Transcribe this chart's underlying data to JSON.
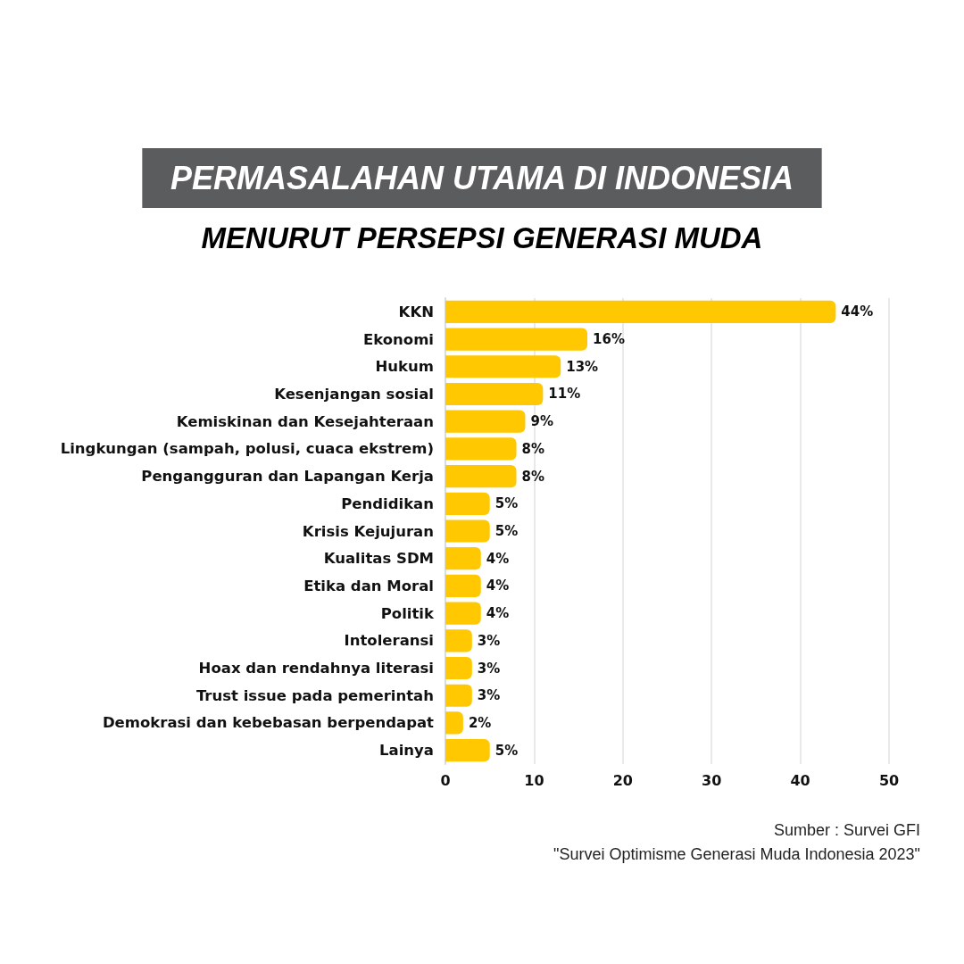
{
  "chart_data": {
    "type": "bar",
    "orientation": "horizontal",
    "title": "PERMASALAHAN UTAMA DI INDONESIA",
    "subtitle": "MENURUT PERSEPSI GENERASI MUDA",
    "categories": [
      "KKN",
      "Ekonomi",
      "Hukum",
      "Kesenjangan sosial",
      "Kemiskinan dan Kesejahteraan",
      "Lingkungan (sampah, polusi, cuaca ekstrem)",
      "Pengangguran dan Lapangan Kerja",
      "Pendidikan",
      "Krisis Kejujuran",
      "Kualitas SDM",
      "Etika dan Moral",
      "Politik",
      "Intoleransi",
      "Hoax dan rendahnya literasi",
      "Trust issue pada pemerintah",
      "Demokrasi dan kebebasan berpendapat",
      "Lainya"
    ],
    "values": [
      44,
      16,
      13,
      11,
      9,
      8,
      8,
      5,
      5,
      4,
      4,
      4,
      3,
      3,
      3,
      2,
      5
    ],
    "value_labels": [
      "44%",
      "16%",
      "13%",
      "11%",
      "9%",
      "8%",
      "8%",
      "5%",
      "5%",
      "4%",
      "4%",
      "4%",
      "3%",
      "3%",
      "3%",
      "2%",
      "5%"
    ],
    "color": "#ffc800",
    "xlim": [
      0,
      50
    ],
    "xticks": [
      0,
      10,
      20,
      30,
      40,
      50
    ],
    "grid": "x",
    "annotations": [
      "Sumber : Survei GFI",
      "\"Survei Optimisme Generasi Muda Indonesia 2023\""
    ]
  }
}
